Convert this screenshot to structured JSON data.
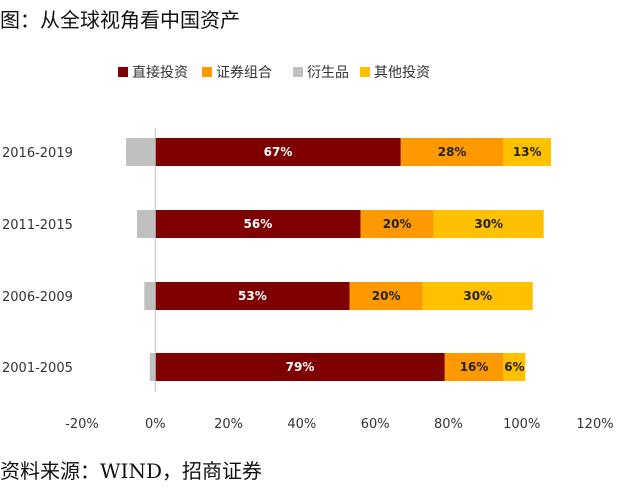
{
  "title": "图：从全球视角看中国资产",
  "source": "资料来源：WIND，招商证券",
  "chart_data": {
    "type": "bar",
    "orientation": "horizontal",
    "stacked": true,
    "title": "",
    "xlabel": "",
    "ylabel": "",
    "xlim": [
      -0.2,
      1.2
    ],
    "x_ticks": [
      -0.2,
      0,
      0.2,
      0.4,
      0.6,
      0.8,
      1.0,
      1.2
    ],
    "x_tick_labels": [
      "-20%",
      "0%",
      "20%",
      "40%",
      "60%",
      "80%",
      "100%",
      "120%"
    ],
    "categories": [
      "2016-2019",
      "2011-2015",
      "2006-2009",
      "2001-2005"
    ],
    "legend_position": "top",
    "grid": false,
    "series": [
      {
        "name": "直接投资",
        "color": "#7f0000",
        "values": [
          0.67,
          0.56,
          0.53,
          0.79
        ],
        "labels": [
          "67%",
          "56%",
          "53%",
          "79%"
        ],
        "label_color": "#ffffff"
      },
      {
        "name": "证券组合",
        "color": "#ff9900",
        "values": [
          0.28,
          0.2,
          0.2,
          0.16
        ],
        "labels": [
          "28%",
          "20%",
          "20%",
          "16%"
        ],
        "label_color": "#222222"
      },
      {
        "name": "衍生品",
        "color": "#c0c0c0",
        "values": [
          -0.08,
          -0.05,
          -0.03,
          -0.015
        ],
        "labels": [
          "",
          "",
          "",
          ""
        ],
        "label_color": "#222222"
      },
      {
        "name": "其他投资",
        "color": "#ffc000",
        "values": [
          0.13,
          0.3,
          0.3,
          0.06
        ],
        "labels": [
          "13%",
          "30%",
          "30%",
          "6%"
        ],
        "label_color": "#222222"
      }
    ]
  }
}
